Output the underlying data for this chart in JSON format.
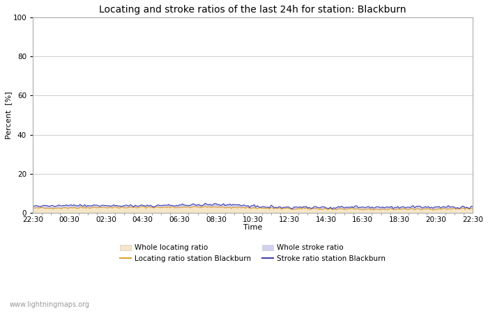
{
  "title": "Locating and stroke ratios of the last 24h for station: Blackburn",
  "xlabel": "Time",
  "ylabel": "Percent  [%]",
  "ylim": [
    0,
    100
  ],
  "yticks": [
    0,
    20,
    40,
    60,
    80,
    100
  ],
  "xtick_labels": [
    "22:30",
    "00:30",
    "02:30",
    "04:30",
    "06:30",
    "08:30",
    "10:30",
    "12:30",
    "14:30",
    "16:30",
    "18:30",
    "20:30",
    "22:30"
  ],
  "n_points": 289,
  "whole_locating_color": "#f5e6c8",
  "whole_stroke_color": "#d0d0f0",
  "locating_station_color": "#e0a030",
  "stroke_station_color": "#4040b0",
  "background_color": "#ffffff",
  "grid_color": "#cccccc",
  "watermark": "www.lightningmaps.org",
  "title_fontsize": 10,
  "axis_fontsize": 8,
  "tick_fontsize": 7.5
}
